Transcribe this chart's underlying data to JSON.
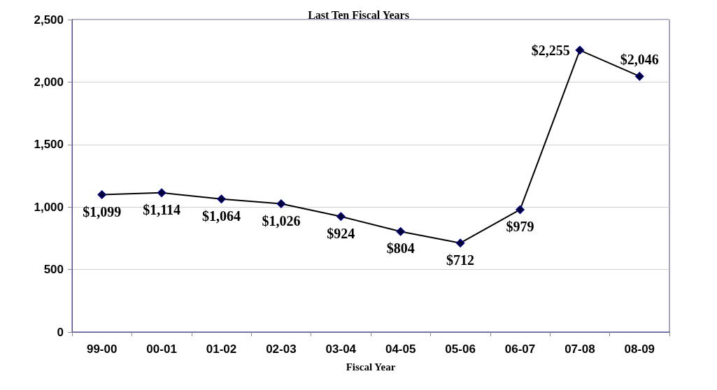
{
  "chart_data": {
    "type": "line",
    "title": "Last Ten Fiscal Years",
    "xlabel": "Fiscal Year",
    "categories": [
      "99-00",
      "00-01",
      "01-02",
      "02-03",
      "03-04",
      "04-05",
      "05-06",
      "06-07",
      "07-08",
      "08-09"
    ],
    "series": [
      {
        "color": "#000000",
        "values": [
          1099,
          1114,
          1064,
          1026,
          924,
          804,
          712,
          979,
          2255,
          2046
        ],
        "value_labels": [
          "$1,099",
          "$1,114",
          "$1,064",
          "$1,026",
          "$924",
          "$804",
          "$712",
          "$979",
          "$2,255",
          "$2,046"
        ]
      }
    ],
    "ylim": [
      0,
      2500
    ],
    "yticks": [
      0,
      500,
      {
        "value": 1000,
        "label": "1,000"
      },
      {
        "value": 1500,
        "label": "1,500"
      },
      {
        "value": 2000,
        "label": "2,000"
      },
      {
        "value": 2500,
        "label": "2,500"
      }
    ],
    "grid": "y",
    "marker": "diamond",
    "line_style": "solid"
  }
}
